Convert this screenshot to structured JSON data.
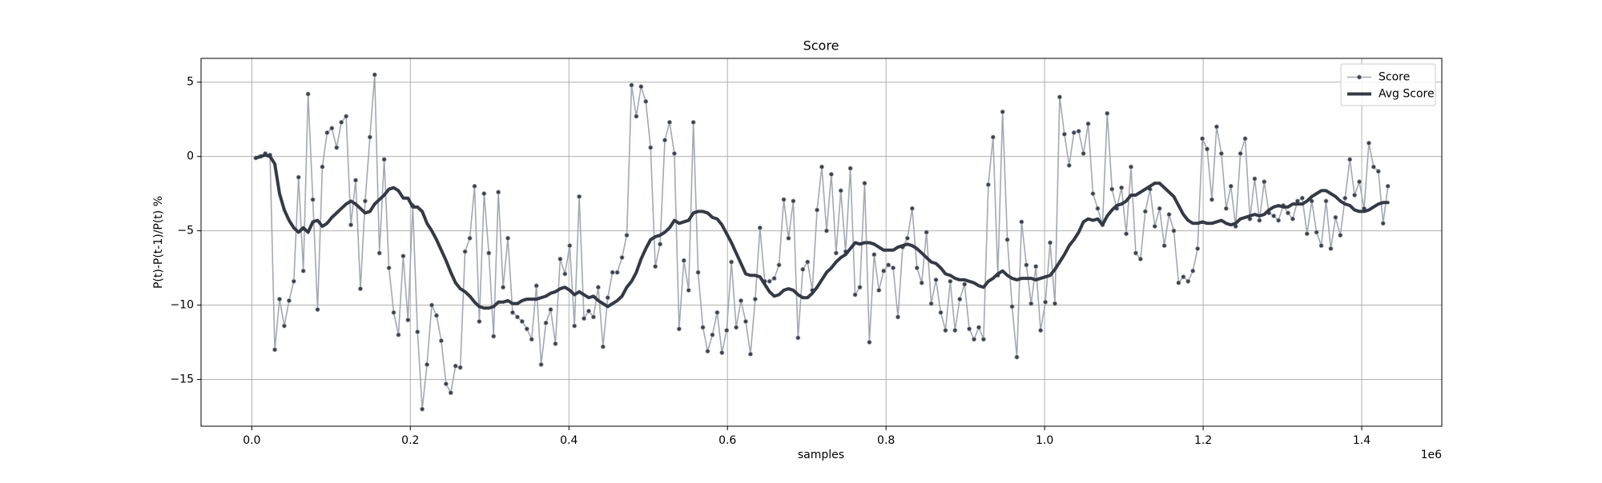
{
  "chart_data": {
    "type": "line",
    "title": "Score",
    "xlabel": "samples",
    "ylabel": "P(t)-P(t-1)/P(t) %",
    "x_offset_label": "1e6",
    "xlim": [
      -64000,
      1501000
    ],
    "ylim": [
      -18.15,
      6.6
    ],
    "xticks": [
      {
        "value": 0,
        "label": "0.0"
      },
      {
        "value": 200000,
        "label": "0.2"
      },
      {
        "value": 400000,
        "label": "0.4"
      },
      {
        "value": 600000,
        "label": "0.6"
      },
      {
        "value": 800000,
        "label": "0.8"
      },
      {
        "value": 1000000,
        "label": "1.0"
      },
      {
        "value": 1200000,
        "label": "1.2"
      },
      {
        "value": 1400000,
        "label": "1.4"
      }
    ],
    "yticks": [
      {
        "value": -15,
        "label": "−15"
      },
      {
        "value": -10,
        "label": "−10"
      },
      {
        "value": -5,
        "label": "−5"
      },
      0,
      5
    ],
    "grid": true,
    "legend": "upper right",
    "x": [
      5000,
      11000,
      17000,
      23000,
      29000,
      35000,
      41000,
      47000,
      53000,
      59000,
      65000,
      71000,
      77000,
      83000,
      89000,
      95000,
      101000,
      107000,
      113000,
      119000,
      125000,
      131000,
      137000,
      143000,
      149000,
      155000,
      161000,
      167000,
      173000,
      179000,
      185000,
      191000,
      197000,
      203000,
      209000,
      215000,
      221000,
      227000,
      233000,
      239000,
      245000,
      251000,
      257000,
      263000,
      269000,
      275000,
      281000,
      287000,
      293000,
      299000,
      305000,
      311000,
      317000,
      323000,
      329000,
      335000,
      341000,
      347000,
      353000,
      359000,
      365000,
      371000,
      377000,
      383000,
      389000,
      395000,
      401000,
      407000,
      413000,
      419000,
      425000,
      431000,
      437000,
      443000,
      449000,
      455000,
      461000,
      467000,
      473000,
      479000,
      485000,
      491000,
      497000,
      503000,
      509000,
      515000,
      521000,
      527000,
      533000,
      539000,
      545000,
      551000,
      557000,
      563000,
      569000,
      575000,
      581000,
      587000,
      593000,
      599000,
      605000,
      611000,
      617000,
      623000,
      629000,
      635000,
      641000,
      647000,
      653000,
      659000,
      665000,
      671000,
      677000,
      683000,
      689000,
      695000,
      701000,
      707000,
      713000,
      719000,
      725000,
      731000,
      737000,
      743000,
      749000,
      755000,
      761000,
      767000,
      773000,
      779000,
      785000,
      791000,
      797000,
      803000,
      809000,
      815000,
      821000,
      827000,
      833000,
      839000,
      845000,
      851000,
      857000,
      863000,
      869000,
      875000,
      881000,
      887000,
      893000,
      899000,
      905000,
      911000,
      917000,
      923000,
      929000,
      935000,
      941000,
      947000,
      953000,
      959000,
      965000,
      971000,
      977000,
      983000,
      989000,
      995000,
      1001000,
      1007000,
      1013000,
      1019000,
      1025000,
      1031000,
      1037000,
      1043000,
      1049000,
      1055000,
      1061000,
      1067000,
      1073000,
      1079000,
      1085000,
      1091000,
      1097000,
      1103000,
      1109000,
      1115000,
      1121000,
      1127000,
      1133000,
      1139000,
      1145000,
      1151000,
      1157000,
      1163000,
      1169000,
      1175000,
      1181000,
      1187000,
      1193000,
      1199000,
      1205000,
      1211000,
      1217000,
      1223000,
      1229000,
      1235000,
      1241000,
      1247000,
      1253000,
      1259000,
      1265000,
      1271000,
      1277000,
      1283000,
      1289000,
      1295000,
      1301000,
      1307000,
      1313000,
      1319000,
      1325000,
      1331000,
      1337000,
      1343000,
      1349000,
      1355000,
      1361000,
      1367000,
      1373000,
      1379000,
      1385000,
      1391000,
      1397000,
      1403000,
      1409000,
      1415000,
      1421000,
      1427000,
      1433000
    ],
    "series": [
      {
        "name": "Score",
        "color": "#a2a8b5",
        "marker_color": "#3a404c",
        "line_width": 1.6,
        "marker": true,
        "values": [
          -0.1,
          0.0,
          0.2,
          0.1,
          -13.0,
          -9.6,
          -11.4,
          -9.7,
          -8.4,
          -1.4,
          -7.7,
          4.2,
          -2.9,
          -10.3,
          -0.7,
          1.6,
          1.9,
          0.6,
          2.3,
          2.7,
          -4.6,
          -1.6,
          -8.9,
          -3.0,
          1.3,
          5.5,
          -6.5,
          -0.2,
          -7.5,
          -10.5,
          -12.0,
          -6.7,
          -11.0,
          -3.3,
          -11.8,
          -17.0,
          -14.0,
          -10.0,
          -10.7,
          -12.4,
          -15.3,
          -15.9,
          -14.1,
          -14.2,
          -6.4,
          -5.5,
          -2.0,
          -11.1,
          -2.5,
          -6.5,
          -12.1,
          -2.4,
          -8.8,
          -5.5,
          -10.5,
          -10.8,
          -11.1,
          -11.6,
          -12.3,
          -8.7,
          -14.0,
          -11.2,
          -10.3,
          -12.6,
          -6.9,
          -7.9,
          -6.0,
          -11.4,
          -2.7,
          -10.9,
          -10.4,
          -10.8,
          -8.8,
          -12.8,
          -9.5,
          -7.8,
          -7.8,
          -6.8,
          -5.3,
          4.8,
          2.7,
          4.7,
          3.7,
          0.6,
          -7.4,
          -5.9,
          1.1,
          2.3,
          0.2,
          -11.6,
          -7.0,
          -9.0,
          2.3,
          -7.8,
          -11.5,
          -13.1,
          -12.0,
          -10.5,
          -13.2,
          -11.7,
          -7.1,
          -11.5,
          -9.7,
          -11.1,
          -13.3,
          -9.6,
          -4.8,
          -8.4,
          -8.4,
          -8.2,
          -7.3,
          -2.9,
          -5.5,
          -3.0,
          -12.2,
          -7.6,
          -7.1,
          -9.0,
          -3.6,
          -0.7,
          -5.0,
          -1.2,
          -6.5,
          -2.3,
          -6.4,
          -0.8,
          -9.3,
          -8.8,
          -1.8,
          -12.5,
          -6.6,
          -9.0,
          -7.7,
          -7.3,
          -7.5,
          -10.8,
          -6.1,
          -5.5,
          -3.5,
          -7.5,
          -8.5,
          -5.1,
          -9.9,
          -8.3,
          -10.5,
          -11.7,
          -8.4,
          -11.7,
          -9.6,
          -8.6,
          -11.6,
          -12.3,
          -11.5,
          -12.3,
          -1.9,
          1.3,
          -8.0,
          3.0,
          -5.6,
          -10.1,
          -13.5,
          -4.4,
          -7.3,
          -9.9,
          -7.4,
          -11.7,
          -9.8,
          -5.8,
          -9.9,
          4.0,
          1.5,
          -0.6,
          1.6,
          1.7,
          0.2,
          2.2,
          -2.5,
          -3.5,
          -4.6,
          2.9,
          -2.2,
          -3.5,
          -2.1,
          -5.2,
          -0.7,
          -6.5,
          -6.9,
          -3.7,
          -2.2,
          -4.7,
          -3.5,
          -6.0,
          -3.9,
          -5.0,
          -8.5,
          -8.1,
          -8.4,
          -7.7,
          -6.2,
          1.2,
          0.5,
          -2.9,
          2.0,
          0.2,
          -3.5,
          -2.0,
          -4.7,
          0.2,
          1.2,
          -4.2,
          -1.5,
          -4.3,
          -1.7,
          -3.8,
          -4.0,
          -4.3,
          -3.3,
          -3.8,
          -4.2,
          -3.0,
          -2.8,
          -5.2,
          -3.0,
          -5.1,
          -6.0,
          -3.0,
          -6.2,
          -4.1,
          -5.3,
          -2.8,
          -0.2,
          -2.6,
          -1.7,
          -3.5,
          0.9,
          -0.7,
          -1.0,
          -4.5,
          -2.0
        ]
      },
      {
        "name": "Avg Score",
        "color": "#343a45",
        "line_width": 4,
        "marker": false,
        "values": [
          -0.1,
          0.0,
          0.1,
          0.0,
          -0.5,
          -2.5,
          -3.6,
          -4.3,
          -4.8,
          -5.1,
          -4.8,
          -5.1,
          -4.4,
          -4.3,
          -4.7,
          -4.5,
          -4.1,
          -3.8,
          -3.5,
          -3.2,
          -3.0,
          -3.2,
          -3.5,
          -3.8,
          -3.7,
          -3.2,
          -2.9,
          -2.6,
          -2.2,
          -2.1,
          -2.3,
          -2.8,
          -2.8,
          -3.4,
          -3.4,
          -3.7,
          -4.5,
          -5.0,
          -5.6,
          -6.3,
          -7.0,
          -7.8,
          -8.5,
          -8.9,
          -9.1,
          -9.4,
          -9.8,
          -10.1,
          -10.2,
          -10.2,
          -10.1,
          -9.8,
          -9.8,
          -9.7,
          -9.9,
          -9.9,
          -9.7,
          -9.6,
          -9.6,
          -9.6,
          -9.5,
          -9.4,
          -9.2,
          -9.1,
          -8.9,
          -8.8,
          -9.0,
          -9.3,
          -9.1,
          -9.3,
          -9.5,
          -9.4,
          -9.7,
          -9.9,
          -10.1,
          -9.9,
          -9.7,
          -9.4,
          -8.8,
          -8.4,
          -7.8,
          -6.9,
          -6.2,
          -5.6,
          -5.4,
          -5.3,
          -5.1,
          -4.8,
          -4.3,
          -4.5,
          -4.4,
          -4.3,
          -3.8,
          -3.7,
          -3.7,
          -3.8,
          -4.1,
          -4.2,
          -4.6,
          -5.2,
          -5.8,
          -6.5,
          -7.2,
          -7.9,
          -8.0,
          -8.0,
          -8.1,
          -8.6,
          -9.1,
          -9.4,
          -9.3,
          -9.0,
          -8.9,
          -9.0,
          -9.3,
          -9.5,
          -9.5,
          -9.2,
          -8.8,
          -8.3,
          -7.8,
          -7.5,
          -7.1,
          -6.8,
          -6.6,
          -6.2,
          -5.8,
          -5.9,
          -5.8,
          -5.8,
          -5.9,
          -6.1,
          -6.3,
          -6.3,
          -6.3,
          -6.1,
          -6.0,
          -5.9,
          -6.0,
          -6.2,
          -6.5,
          -6.8,
          -7.1,
          -7.2,
          -7.5,
          -7.9,
          -8.0,
          -8.2,
          -8.3,
          -8.3,
          -8.4,
          -8.5,
          -8.7,
          -8.8,
          -8.4,
          -8.2,
          -7.9,
          -7.7,
          -8.0,
          -8.2,
          -8.3,
          -8.2,
          -8.2,
          -8.2,
          -8.3,
          -8.2,
          -8.1,
          -8.0,
          -7.6,
          -7.1,
          -6.6,
          -6.0,
          -5.6,
          -5.1,
          -4.4,
          -4.2,
          -4.3,
          -4.2,
          -4.6,
          -4.0,
          -3.6,
          -3.3,
          -3.2,
          -3.0,
          -2.6,
          -2.6,
          -2.4,
          -2.2,
          -2.0,
          -1.8,
          -1.8,
          -2.1,
          -2.4,
          -2.7,
          -3.3,
          -3.9,
          -4.3,
          -4.5,
          -4.5,
          -4.4,
          -4.5,
          -4.5,
          -4.4,
          -4.3,
          -4.5,
          -4.6,
          -4.5,
          -4.2,
          -4.1,
          -4.0,
          -3.9,
          -4.0,
          -3.9,
          -3.6,
          -3.4,
          -3.3,
          -3.4,
          -3.4,
          -3.2,
          -3.2,
          -3.2,
          -3.0,
          -2.7,
          -2.5,
          -2.3,
          -2.3,
          -2.5,
          -2.7,
          -3.0,
          -3.2,
          -3.3,
          -3.6,
          -3.7,
          -3.7,
          -3.6,
          -3.4,
          -3.2,
          -3.1,
          -3.1
        ]
      }
    ]
  }
}
